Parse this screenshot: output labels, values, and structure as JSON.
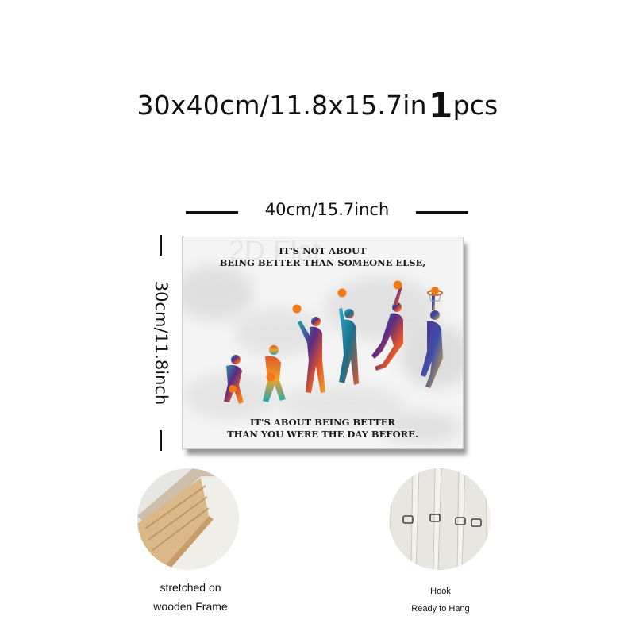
{
  "title": {
    "size_text": "30x40cm/11.8x15.7in",
    "qty_number": "1",
    "qty_unit": "pcs"
  },
  "dimensions": {
    "width_label": "40cm/15.7inch",
    "height_label": "30cm/11.8inch"
  },
  "poster": {
    "watermark": "2D Flat",
    "quote_top": [
      "IT'S NOT ABOUT",
      "BEING BETTER THAN SOMEONE ELSE,"
    ],
    "quote_bottom": [
      "IT'S ABOUT BEING BETTER",
      "THAN YOU WERE THE DAY BEFORE."
    ]
  },
  "features": [
    {
      "lines": [
        "stretched on",
        "wooden Frame"
      ]
    },
    {
      "lines": [
        "Hook",
        "Ready to Hang"
      ]
    }
  ],
  "colors": {
    "ball": "#f07a1a",
    "teal": "#1fa7b3",
    "purple": "#5b2a86",
    "frame_wood": "#d8b48a"
  }
}
